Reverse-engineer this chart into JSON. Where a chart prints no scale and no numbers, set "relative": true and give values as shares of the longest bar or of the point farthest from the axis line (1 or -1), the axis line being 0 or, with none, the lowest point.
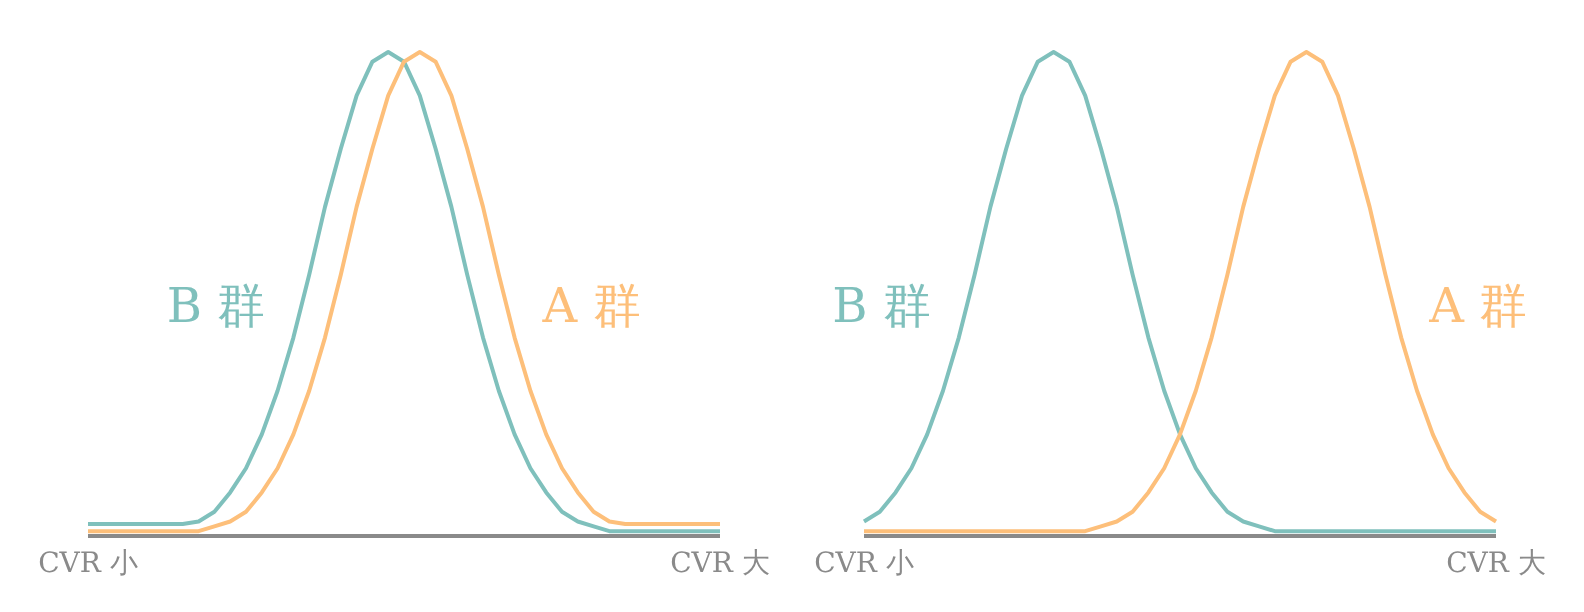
{
  "chart_data": [
    {
      "type": "line",
      "relative": true,
      "categories": [
        "CVR 小",
        null,
        null,
        null,
        null,
        null,
        null,
        null,
        null,
        null,
        null,
        null,
        null,
        null,
        null,
        null,
        null,
        null,
        null,
        null,
        null,
        null,
        null,
        null,
        null,
        null,
        null,
        null,
        null,
        null,
        null,
        null,
        null,
        null,
        null,
        null,
        null,
        null,
        null,
        null,
        "CVR 大"
      ],
      "series": [
        {
          "name": "B 群",
          "color": "#7fc0bc",
          "values": [
            0.025,
            0.025,
            0.025,
            0.025,
            0.025,
            0.025,
            0.025,
            0.03,
            0.05,
            0.09,
            0.14,
            0.21,
            0.3,
            0.41,
            0.54,
            0.68,
            0.8,
            0.91,
            0.98,
            1,
            0.98,
            0.91,
            0.8,
            0.68,
            0.54,
            0.41,
            0.3,
            0.21,
            0.14,
            0.09,
            0.05,
            0.03,
            0.02,
            0.01,
            0.01,
            0.01,
            0.01,
            0.01,
            0.01,
            0.01,
            0.01
          ]
        },
        {
          "name": "A 群",
          "color": "#fdbf7a",
          "values": [
            0.01,
            0.01,
            0.01,
            0.01,
            0.01,
            0.01,
            0.01,
            0.01,
            0.02,
            0.03,
            0.05,
            0.09,
            0.14,
            0.21,
            0.3,
            0.41,
            0.54,
            0.68,
            0.8,
            0.91,
            0.98,
            1,
            0.98,
            0.91,
            0.8,
            0.68,
            0.54,
            0.41,
            0.3,
            0.21,
            0.14,
            0.09,
            0.05,
            0.03,
            0.025,
            0.025,
            0.025,
            0.025,
            0.025,
            0.025,
            0.025
          ]
        }
      ],
      "grid": false,
      "legend": false,
      "marker": "none",
      "line_style": "solid"
    },
    {
      "type": "line",
      "relative": true,
      "categories": [
        "CVR 小",
        null,
        null,
        null,
        null,
        null,
        null,
        null,
        null,
        null,
        null,
        null,
        null,
        null,
        null,
        null,
        null,
        null,
        null,
        null,
        null,
        null,
        null,
        null,
        null,
        null,
        null,
        null,
        null,
        null,
        null,
        null,
        null,
        null,
        null,
        null,
        null,
        null,
        null,
        null,
        "CVR 大"
      ],
      "series": [
        {
          "name": "B 群",
          "color": "#7fc0bc",
          "values": [
            0.03,
            0.05,
            0.09,
            0.14,
            0.21,
            0.3,
            0.41,
            0.54,
            0.68,
            0.8,
            0.91,
            0.98,
            1,
            0.98,
            0.91,
            0.8,
            0.68,
            0.54,
            0.41,
            0.3,
            0.21,
            0.14,
            0.09,
            0.05,
            0.03,
            0.02,
            0.01,
            0.01,
            0.01,
            0.01,
            0.01,
            0.01,
            0.01,
            0.01,
            0.01,
            0.01,
            0.01,
            0.01,
            0.01,
            0.01,
            0.01
          ]
        },
        {
          "name": "A 群",
          "color": "#fdbf7a",
          "values": [
            0.01,
            0.01,
            0.01,
            0.01,
            0.01,
            0.01,
            0.01,
            0.01,
            0.01,
            0.01,
            0.01,
            0.01,
            0.01,
            0.01,
            0.01,
            0.02,
            0.03,
            0.05,
            0.09,
            0.14,
            0.21,
            0.3,
            0.41,
            0.54,
            0.68,
            0.8,
            0.91,
            0.98,
            1,
            0.98,
            0.91,
            0.8,
            0.68,
            0.54,
            0.41,
            0.3,
            0.21,
            0.14,
            0.09,
            0.05,
            0.03
          ]
        }
      ],
      "grid": false,
      "legend": false,
      "marker": "none",
      "line_style": "solid"
    }
  ]
}
